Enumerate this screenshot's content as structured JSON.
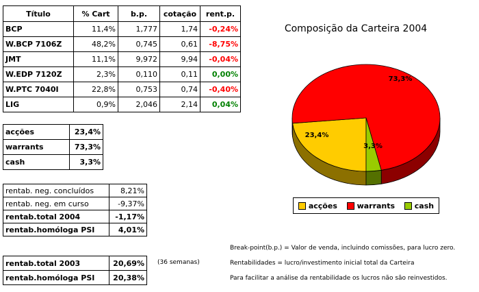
{
  "portfolio": {
    "headers": [
      "Título",
      "% Cart",
      "b.p.",
      "cotação",
      "rent.p."
    ],
    "rows": [
      {
        "titulo": "BCP",
        "cart": "11,4%",
        "bp": "1,777",
        "cot": "1,74",
        "rent": "-0,24%",
        "sign": "neg"
      },
      {
        "titulo": "W.BCP 7106Z",
        "cart": "48,2%",
        "bp": "0,745",
        "cot": "0,61",
        "rent": "-8,75%",
        "sign": "neg"
      },
      {
        "titulo": "JMT",
        "cart": "11,1%",
        "bp": "9,972",
        "cot": "9,94",
        "rent": "-0,04%",
        "sign": "neg"
      },
      {
        "titulo": "W.EDP 7120Z",
        "cart": "2,3%",
        "bp": "0,110",
        "cot": "0,11",
        "rent": "0,00%",
        "sign": "pos"
      },
      {
        "titulo": "W.PTC 7040I",
        "cart": "22,8%",
        "bp": "0,753",
        "cot": "0,74",
        "rent": "-0,40%",
        "sign": "neg"
      },
      {
        "titulo": "LIG",
        "cart": "0,9%",
        "bp": "2,046",
        "cot": "2,14",
        "rent": "0,04%",
        "sign": "pos"
      }
    ]
  },
  "allocation": [
    {
      "label": "acções",
      "value": "23,4%"
    },
    {
      "label": "warrants",
      "value": "73,3%"
    },
    {
      "label": "cash",
      "value": "3,3%"
    }
  ],
  "returns": [
    {
      "label": "rentab. neg. concluídos",
      "value": "8,21%",
      "bold": false
    },
    {
      "label": "rentab. neg. em curso",
      "value": "-9,37%",
      "bold": false
    },
    {
      "label": "rentab.total 2004",
      "value": "-1,17%",
      "bold": true
    },
    {
      "label": "rentab.homóloga PSI",
      "value": "4,01%",
      "bold": true
    }
  ],
  "returns_prev": [
    {
      "label": "rentab.total 2003",
      "value": "20,69%"
    },
    {
      "label": "rentab.homóloga PSI",
      "value": "20,38%"
    }
  ],
  "weeks_note": "(36 semanas)",
  "notes": [
    "Break-point(b.p.) = Valor de venda, incluindo comissões, para lucro zero.",
    "Rentabilidades = lucro/investimento inicial total da Carteira",
    "Para facilitar a análise da rentabilidade os lucros não são reinvestidos."
  ],
  "colors": {
    "red": "#ff0000",
    "green": "#008000",
    "accoes": "#ffcc00",
    "warrants": "#ff0000",
    "cash": "#99cc00"
  },
  "chart_data": {
    "type": "pie",
    "title": "Composição da Carteira 2004",
    "categories": [
      "acções",
      "warrants",
      "cash"
    ],
    "values": [
      23.4,
      73.3,
      3.3
    ],
    "labels": [
      "23,4%",
      "73,3%",
      "3,3%"
    ],
    "colors": [
      "#ffcc00",
      "#ff0000",
      "#99cc00"
    ],
    "legend": "bottom"
  }
}
